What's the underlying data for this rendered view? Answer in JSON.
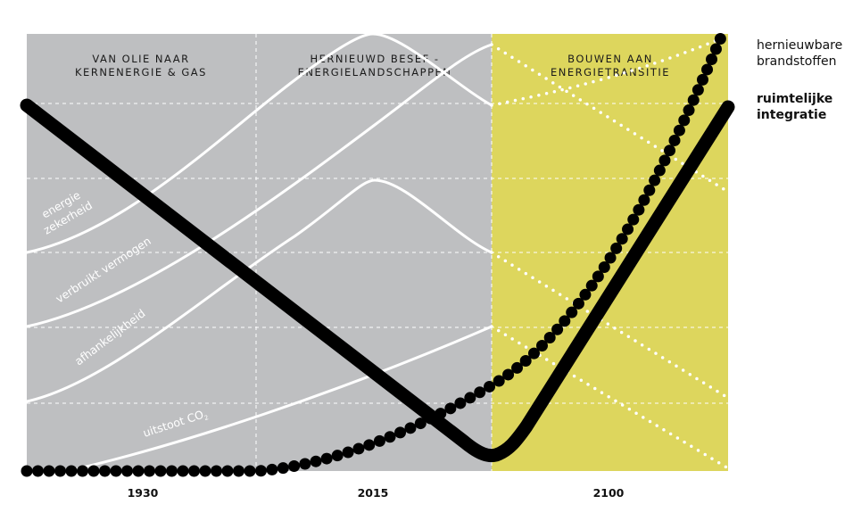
{
  "phases": [
    {
      "line1": "VAN OLIE NAAR",
      "line2": "KERNENERGIE & GAS"
    },
    {
      "line1": "HERNIEUWD BESEF -",
      "line2": "ENERGIELANDSCHAPPEN"
    },
    {
      "line1": "BOUWEN AAN",
      "line2": "ENERGIETRANSITIE"
    }
  ],
  "curve_labels": {
    "energie_1": "energie",
    "energie_2": "zekerheid",
    "verbruikt": "verbruikt vermogen",
    "afhankelijkheid": "afhankelijkheid",
    "uitstoot": "uitstoot CO",
    "uitstoot_sub": "2"
  },
  "years": [
    "1930",
    "2015",
    "2100"
  ],
  "legend": [
    {
      "line1": "hernieuwbare",
      "line2": "brandstoffen"
    },
    {
      "line1": "ruimtelijke",
      "line2": "integratie"
    }
  ],
  "colors": {
    "past": "#bebfc1",
    "future": "#ddd65d",
    "lines": "#ffffff",
    "accent": "#000000"
  }
}
